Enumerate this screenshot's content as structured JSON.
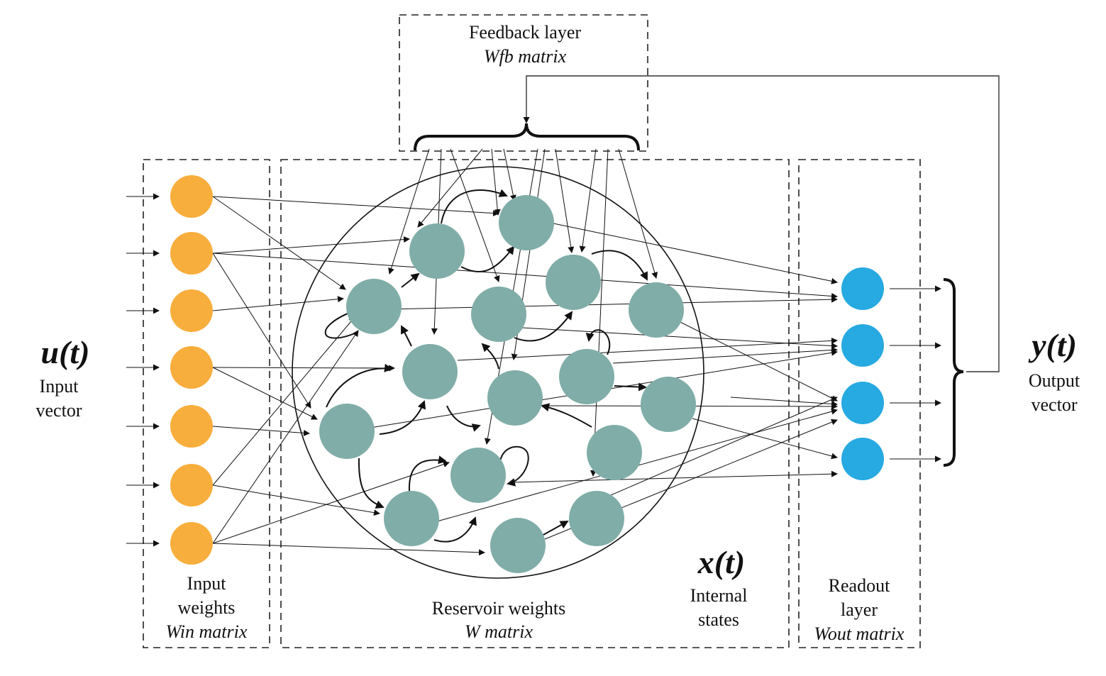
{
  "feedback": {
    "title": "Feedback layer",
    "matrix": "Wfb matrix"
  },
  "input": {
    "symbol": "u(t)",
    "label_line1": "Input",
    "label_line2": "vector",
    "weights_line1": "Input",
    "weights_line2": "weights",
    "matrix": "Win matrix",
    "node_count": 7
  },
  "reservoir": {
    "weights_label": "Reservoir weights",
    "matrix": "W matrix",
    "state_symbol": "x(t)",
    "state_line1": "Internal",
    "state_line2": "states",
    "node_count": 17
  },
  "readout": {
    "line1": "Readout",
    "line2": "layer",
    "matrix": "Wout matrix",
    "node_count": 4
  },
  "output": {
    "symbol": "y(t)",
    "label_line1": "Output",
    "label_line2": "vector"
  },
  "colors": {
    "input_node": "#F8AE3C",
    "reservoir_node": "#80ADA8",
    "readout_node": "#27A9E1",
    "line": "#111111",
    "background": "#FFFFFF"
  }
}
